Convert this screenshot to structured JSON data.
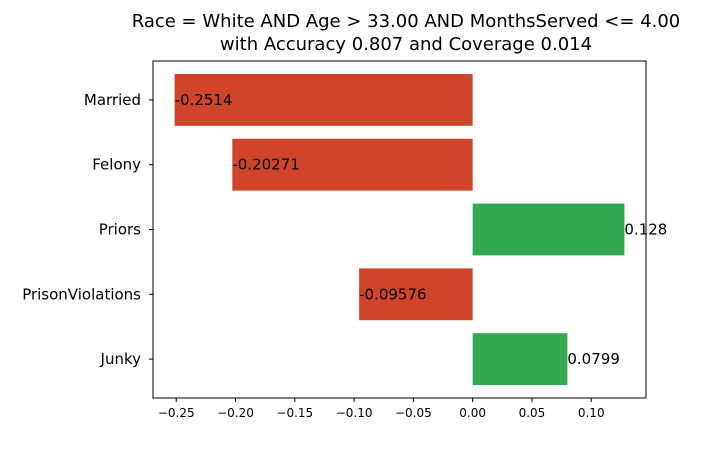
{
  "chart_data": {
    "type": "bar",
    "orientation": "horizontal",
    "title": "Race = White AND Age > 33.00 AND MonthsServed <= 4.00",
    "subtitle": "with Accuracy 0.807 and Coverage 0.014",
    "categories": [
      "Married",
      "Felony",
      "Priors",
      "PrisonViolations",
      "Junky"
    ],
    "values": [
      -0.2514,
      -0.20271,
      0.128,
      -0.09576,
      0.0799
    ],
    "value_labels": [
      "-0.2514",
      "-0.20271",
      "0.128",
      "-0.09576",
      "0.0799"
    ],
    "xticks": [
      "−0.25",
      "−0.20",
      "−0.15",
      "−0.10",
      "−0.05",
      "0.00",
      "0.05",
      "0.10"
    ],
    "xtick_values": [
      -0.25,
      -0.2,
      -0.15,
      -0.1,
      -0.05,
      0.0,
      0.05,
      0.1
    ],
    "xlim": [
      -0.2696,
      0.1462
    ],
    "xlabel": "",
    "ylabel": "",
    "grid": false,
    "legend": "none",
    "colors": {
      "negative": "#d04529",
      "positive": "#32a852"
    }
  }
}
